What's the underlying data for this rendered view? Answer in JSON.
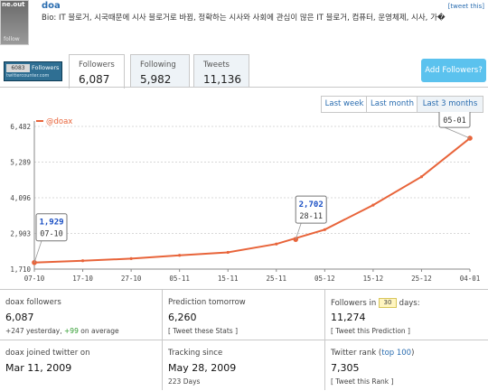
{
  "header": {
    "avatar_text_top": "ne.out",
    "avatar_text_bottom": "follow",
    "username": "doa",
    "tweet_this": "[tweet this]",
    "bio": "Bio: IT 블로거, 시국때문에 시사 블로거로 바뀜, 정확하는 시사와 사회에 관심이 많은 IT 블로거, 컴퓨터, 운영체제, 시사, 가�"
  },
  "badge": {
    "count": "6083",
    "label": "Followers",
    "url": "twittercounter.com"
  },
  "tabs": [
    {
      "label": "Followers",
      "value": "6,087"
    },
    {
      "label": "Following",
      "value": "5,982"
    },
    {
      "label": "Tweets",
      "value": "11,136"
    }
  ],
  "add_followers_label": "Add Followers?",
  "range_buttons": [
    "Last week",
    "Last month",
    "Last 3 months"
  ],
  "colors": {
    "line": "#e8643a",
    "accent": "#2a6db0",
    "button": "#5bc2ee",
    "positive": "#2c9a2c"
  },
  "chart_data": {
    "type": "line",
    "series": [
      {
        "name": "@doax",
        "x": [
          "07-10",
          "17-10",
          "27-10",
          "05-11",
          "15-11",
          "25-11",
          "05-12",
          "15-12",
          "25-12",
          "04-01"
        ],
        "values": [
          1929,
          1990,
          2060,
          2170,
          2270,
          2550,
          3030,
          3850,
          4800,
          6087
        ]
      }
    ],
    "ylim": [
      1710,
      6482
    ],
    "yticks": [
      "1,710",
      "2,903",
      "4,096",
      "5,289",
      "6,482"
    ],
    "grid": true,
    "legend": "top-left",
    "callouts": [
      {
        "value": "1,929",
        "date": "07-10"
      },
      {
        "value": "2,702",
        "date": "28-11"
      },
      {
        "value": "6,087",
        "date": "05-01"
      }
    ]
  },
  "stats": [
    {
      "title": "doax followers",
      "value": "6,087",
      "sub_pre": "+247 yesterday, ",
      "sub_green": "+99",
      "sub_post": " on average"
    },
    {
      "title": "Prediction tomorrow",
      "value": "6,260",
      "link": "[ Tweet these Stats ]"
    },
    {
      "title_pre": "Followers in ",
      "title_box": "30",
      "title_post": " days:",
      "value": "11,274",
      "link": "[ Tweet this Prediction ]"
    },
    {
      "title": "doax joined twitter on",
      "value": "Mar 11, 2009"
    },
    {
      "title": "Tracking since",
      "value": "May 28, 2009",
      "sub": "223 Days"
    },
    {
      "title_pre": "Twitter rank (",
      "title_link": "top 100",
      "title_post": ")",
      "value": "7,305",
      "link": "[ Tweet this Rank ]"
    }
  ]
}
